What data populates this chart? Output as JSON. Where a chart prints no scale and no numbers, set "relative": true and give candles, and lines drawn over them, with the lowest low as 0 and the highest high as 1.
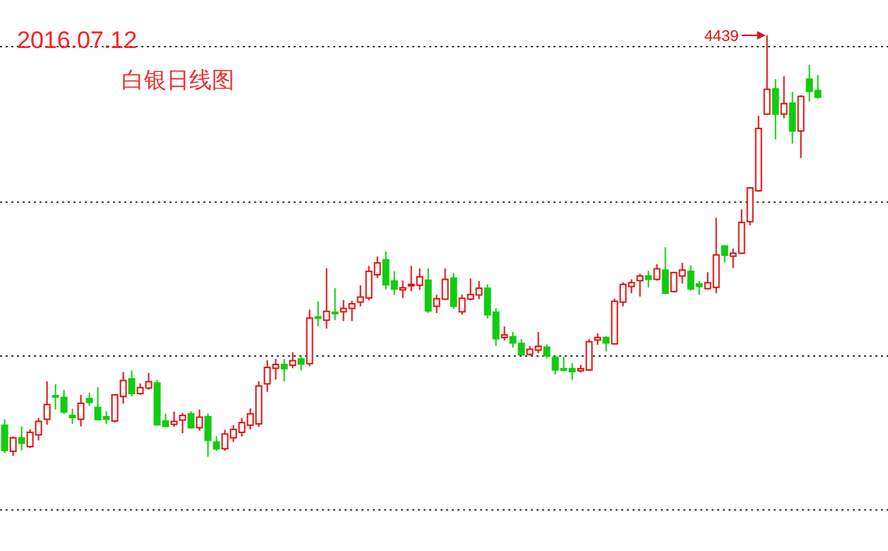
{
  "chart_data": {
    "type": "candlestick",
    "title": "2016.07.12",
    "subtitle": "白银日线图",
    "relative": true,
    "tick_labels": false,
    "categories": [
      null,
      null,
      null,
      null,
      null,
      null,
      null,
      null,
      null,
      null,
      null,
      null,
      null,
      null,
      null,
      null,
      null,
      null,
      null,
      null,
      null,
      null,
      null,
      null,
      null,
      null,
      null,
      null,
      null,
      null,
      null,
      null,
      null,
      null,
      null,
      null,
      null,
      null,
      null,
      null,
      null,
      null,
      null,
      null,
      null,
      null,
      null,
      null,
      null,
      null,
      null,
      null,
      null,
      null,
      null,
      null,
      null,
      null,
      null,
      null,
      null,
      null,
      null,
      null,
      null,
      null,
      null,
      null,
      null,
      null,
      null,
      null,
      null,
      null,
      null,
      null,
      null,
      null,
      null,
      null,
      null,
      null,
      null,
      null,
      null,
      null,
      null,
      null,
      null,
      null,
      null,
      null,
      null,
      null,
      null,
      null,
      null
    ],
    "ohlc": [
      [
        0.075,
        0.089,
        0.009,
        0.015
      ],
      [
        0.013,
        0.048,
        0.002,
        0.045
      ],
      [
        0.045,
        0.072,
        0.015,
        0.032
      ],
      [
        0.024,
        0.065,
        0.021,
        0.058
      ],
      [
        0.052,
        0.092,
        0.039,
        0.084
      ],
      [
        0.089,
        0.179,
        0.076,
        0.124
      ],
      [
        0.145,
        0.172,
        0.112,
        0.143
      ],
      [
        0.141,
        0.159,
        0.102,
        0.106
      ],
      [
        0.098,
        0.114,
        0.078,
        0.093
      ],
      [
        0.089,
        0.147,
        0.072,
        0.127
      ],
      [
        0.138,
        0.152,
        0.121,
        0.129
      ],
      [
        0.117,
        0.165,
        0.086,
        0.088
      ],
      [
        0.095,
        0.108,
        0.078,
        0.089
      ],
      [
        0.085,
        0.148,
        0.081,
        0.147
      ],
      [
        0.143,
        0.201,
        0.126,
        0.181
      ],
      [
        0.185,
        0.205,
        0.143,
        0.15
      ],
      [
        0.15,
        0.174,
        0.147,
        0.164
      ],
      [
        0.163,
        0.199,
        0.159,
        0.178
      ],
      [
        0.175,
        0.182,
        0.074,
        0.076
      ],
      [
        0.085,
        0.102,
        0.07,
        0.072
      ],
      [
        0.077,
        0.107,
        0.071,
        0.084
      ],
      [
        0.087,
        0.104,
        0.056,
        0.098
      ],
      [
        0.102,
        0.108,
        0.067,
        0.069
      ],
      [
        0.069,
        0.112,
        0.062,
        0.094
      ],
      [
        0.095,
        0.103,
        0,
        0.039
      ],
      [
        0.035,
        0.048,
        0.014,
        0.019
      ],
      [
        0.019,
        0.064,
        0.014,
        0.054
      ],
      [
        0.045,
        0.075,
        0.035,
        0.065
      ],
      [
        0.058,
        0.092,
        0.048,
        0.081
      ],
      [
        0.075,
        0.115,
        0.065,
        0.102
      ],
      [
        0.078,
        0.179,
        0.071,
        0.168
      ],
      [
        0.173,
        0.229,
        0.154,
        0.212
      ],
      [
        0.21,
        0.232,
        0.183,
        0.219
      ],
      [
        0.219,
        0.232,
        0.179,
        0.209
      ],
      [
        0.217,
        0.248,
        0.21,
        0.228
      ],
      [
        0.232,
        0.239,
        0.205,
        0.22
      ],
      [
        0.221,
        0.349,
        0.215,
        0.329
      ],
      [
        0.332,
        0.369,
        0.31,
        0.33
      ],
      [
        0.324,
        0.447,
        0.304,
        0.345
      ],
      [
        0.343,
        0.4,
        0.324,
        0.341
      ],
      [
        0.344,
        0.372,
        0.322,
        0.352
      ],
      [
        0.352,
        0.37,
        0.322,
        0.363
      ],
      [
        0.367,
        0.407,
        0.357,
        0.379
      ],
      [
        0.377,
        0.453,
        0.371,
        0.44
      ],
      [
        0.432,
        0.475,
        0.424,
        0.46
      ],
      [
        0.467,
        0.487,
        0.397,
        0.408
      ],
      [
        0.417,
        0.44,
        0.384,
        0.398
      ],
      [
        0.396,
        0.418,
        0.377,
        0.401
      ],
      [
        0.407,
        0.453,
        0.393,
        0.409
      ],
      [
        0.407,
        0.447,
        0.396,
        0.427
      ],
      [
        0.419,
        0.447,
        0.341,
        0.346
      ],
      [
        0.357,
        0.384,
        0.341,
        0.375
      ],
      [
        0.374,
        0.447,
        0.372,
        0.421
      ],
      [
        0.424,
        0.436,
        0.351,
        0.357
      ],
      [
        0.344,
        0.385,
        0.337,
        0.376
      ],
      [
        0.374,
        0.423,
        0.371,
        0.385
      ],
      [
        0.384,
        0.417,
        0.374,
        0.4
      ],
      [
        0.4,
        0.409,
        0.328,
        0.337
      ],
      [
        0.343,
        0.352,
        0.263,
        0.28
      ],
      [
        0.283,
        0.309,
        0.276,
        0.289
      ],
      [
        0.285,
        0.296,
        0.259,
        0.27
      ],
      [
        0.269,
        0.279,
        0.24,
        0.242
      ],
      [
        0.243,
        0.263,
        0.24,
        0.255
      ],
      [
        0.253,
        0.296,
        0.246,
        0.262
      ],
      [
        0.26,
        0.267,
        0.233,
        0.24
      ],
      [
        0.236,
        0.238,
        0.195,
        0.206
      ],
      [
        0.209,
        0.237,
        0.202,
        0.206
      ],
      [
        0.209,
        0.222,
        0.183,
        0.202
      ],
      [
        0.204,
        0.218,
        0.2,
        0.209
      ],
      [
        0.206,
        0.279,
        0.204,
        0.273
      ],
      [
        0.277,
        0.293,
        0.266,
        0.283
      ],
      [
        0.283,
        0.286,
        0.25,
        0.27
      ],
      [
        0.268,
        0.375,
        0.266,
        0.369
      ],
      [
        0.367,
        0.414,
        0.357,
        0.409
      ],
      [
        0.404,
        0.421,
        0.388,
        0.413
      ],
      [
        0.418,
        0.434,
        0.38,
        0.429
      ],
      [
        0.429,
        0.441,
        0.402,
        0.421
      ],
      [
        0.421,
        0.457,
        0.418,
        0.446
      ],
      [
        0.443,
        0.497,
        0.386,
        0.388
      ],
      [
        0.392,
        0.439,
        0.39,
        0.437
      ],
      [
        0.429,
        0.46,
        0.411,
        0.443
      ],
      [
        0.44,
        0.454,
        0.394,
        0.398
      ],
      [
        0.41,
        0.417,
        0.384,
        0.404
      ],
      [
        0.399,
        0.438,
        0.397,
        0.413
      ],
      [
        0.402,
        0.567,
        0.388,
        0.479
      ],
      [
        0.5,
        0.502,
        0.461,
        0.478
      ],
      [
        0.476,
        0.494,
        0.448,
        0.483
      ],
      [
        0.483,
        0.587,
        0.481,
        0.556
      ],
      [
        0.558,
        0.64,
        0.549,
        0.638
      ],
      [
        0.631,
        0.809,
        0.629,
        0.779
      ],
      [
        0.813,
        1,
        0.811,
        0.872
      ],
      [
        0.873,
        0.896,
        0.753,
        0.813
      ],
      [
        0.813,
        0.903,
        0.803,
        0.838
      ],
      [
        0.839,
        0.866,
        0.743,
        0.773
      ],
      [
        0.773,
        0.858,
        0.709,
        0.855
      ],
      [
        0.896,
        0.93,
        0.843,
        0.867
      ],
      [
        0.869,
        0.906,
        0.85,
        0.853
      ]
    ],
    "annotations": [
      "4439"
    ],
    "ref_lines": [
      {
        "axis": "y",
        "value": 0.973,
        "line_style": "dotted"
      },
      {
        "axis": "y",
        "value": 0.604,
        "line_style": "dotted"
      },
      {
        "axis": "y",
        "value": 0.239,
        "line_style": "dotted"
      },
      {
        "axis": "y",
        "value": -0.126,
        "line_style": "dotted"
      }
    ]
  }
}
